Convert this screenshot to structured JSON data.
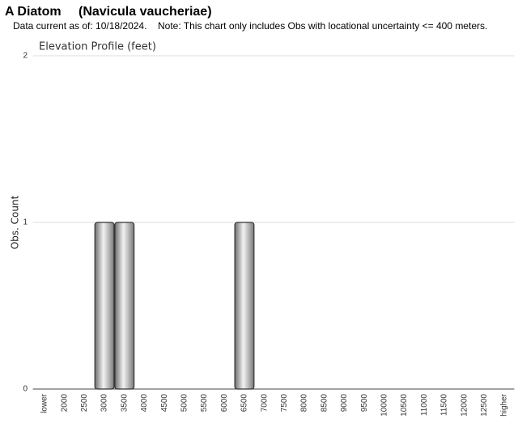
{
  "chart_data": {
    "type": "bar",
    "title": "A Diatom",
    "species": "(Navicula vaucheriae)",
    "subtitle": "Data current as of: 10/18/2024.",
    "note": "Note: This chart only includes Obs with locational uncertainty <= 400 meters.",
    "plot_title": "Elevation Profile (feet)",
    "y_label": "Obs. Count",
    "categories": [
      "lower",
      "2000",
      "2500",
      "3000",
      "3500",
      "4000",
      "4500",
      "5000",
      "5500",
      "6000",
      "6500",
      "7000",
      "7500",
      "8000",
      "8500",
      "9000",
      "9500",
      "10000",
      "10500",
      "11000",
      "11500",
      "12000",
      "12500",
      "higher"
    ],
    "values": [
      0,
      0,
      0,
      1,
      1,
      0,
      0,
      0,
      0,
      0,
      1,
      0,
      0,
      0,
      0,
      0,
      0,
      0,
      0,
      0,
      0,
      0,
      0,
      0
    ],
    "color": "#888888",
    "ylim": [
      0,
      2
    ],
    "yticks": [
      0,
      1,
      2
    ],
    "grid": true
  }
}
